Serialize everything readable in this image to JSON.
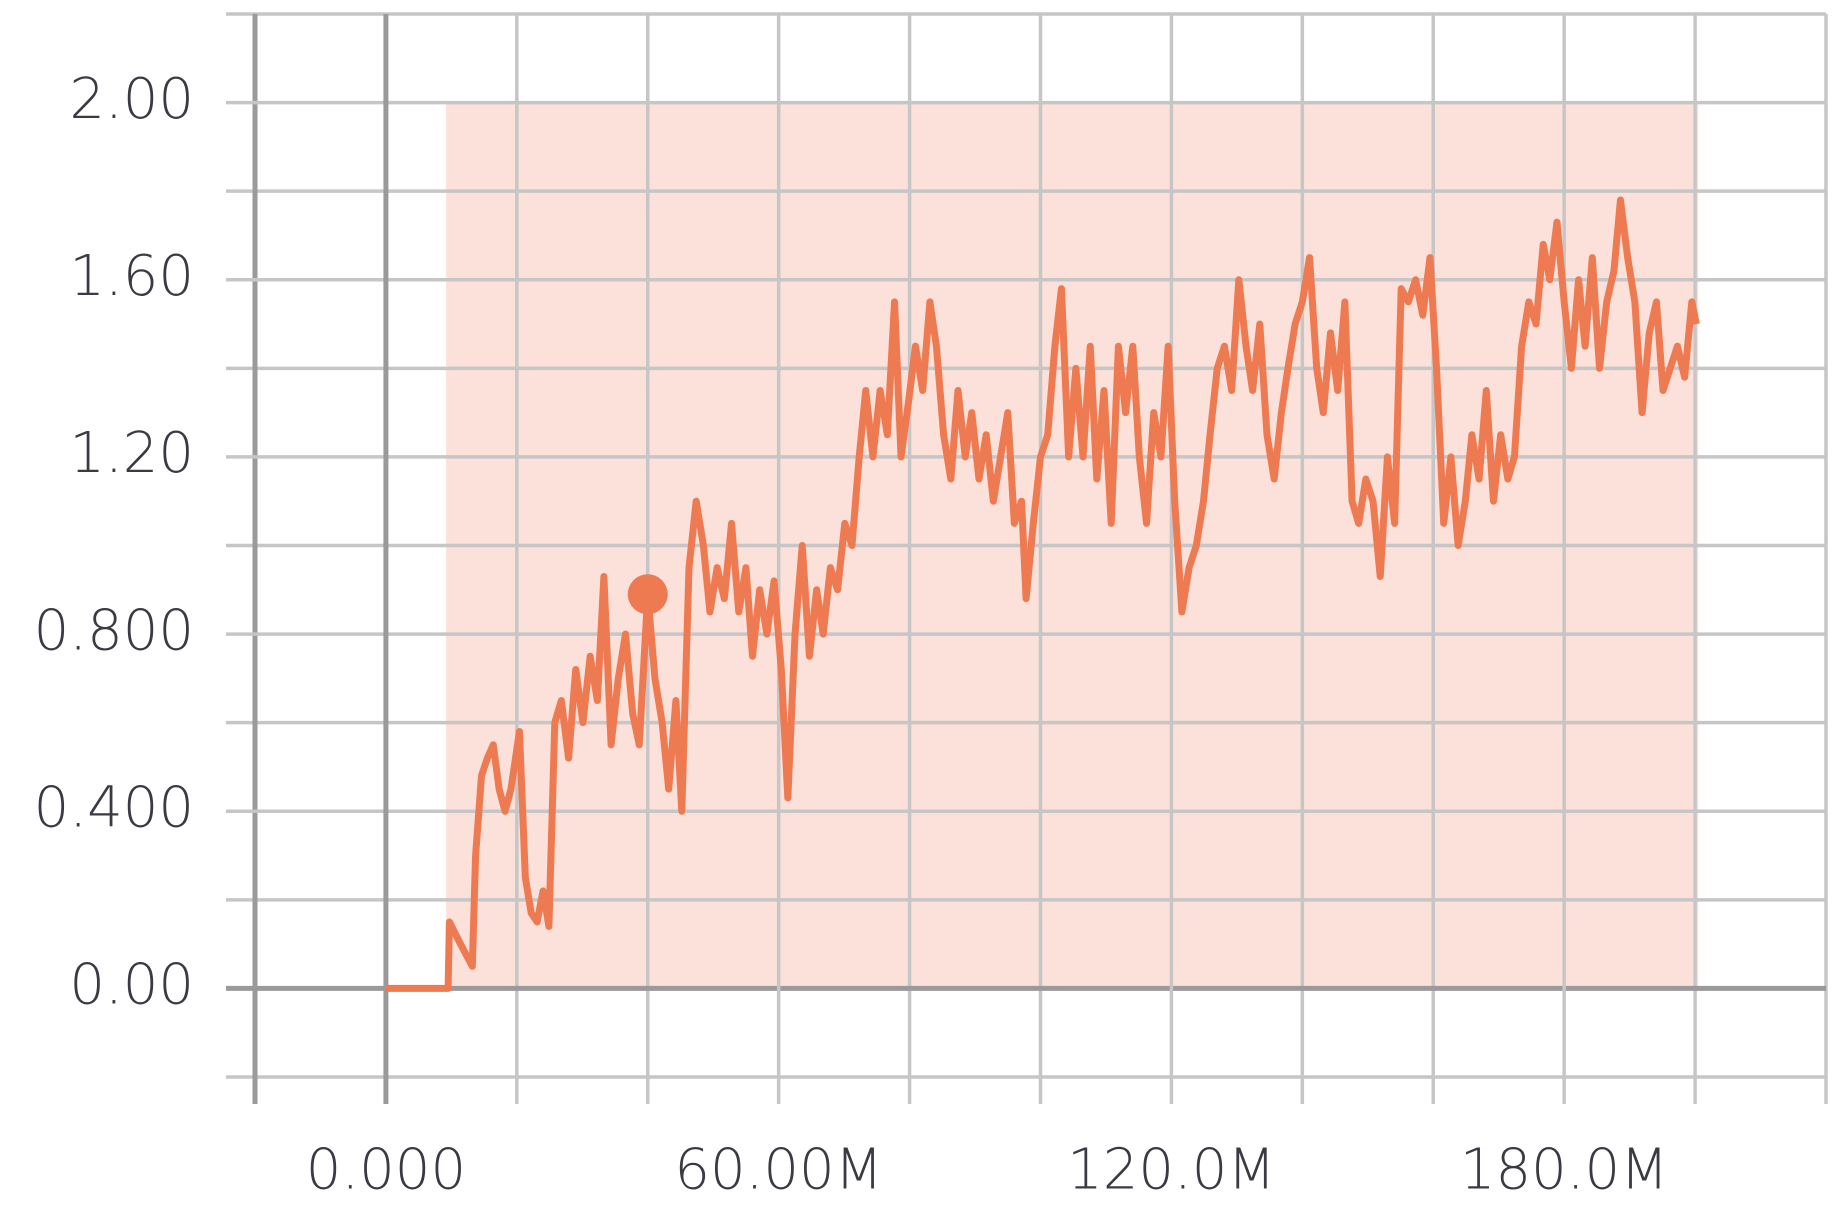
{
  "chart_data": {
    "type": "line",
    "x": [
      0,
      9.5,
      9.7,
      11.4,
      13.2,
      13.7,
      14.6,
      15.5,
      16.4,
      17.3,
      18.2,
      19.1,
      20.4,
      21.3,
      22.2,
      23.1,
      24.0,
      24.9,
      25.8,
      26.8,
      27.9,
      29.0,
      30.1,
      31.2,
      32.3,
      33.3,
      34.4,
      35.5,
      36.6,
      37.7,
      38.7,
      40.0,
      41.1,
      42.2,
      43.2,
      44.3,
      45.2,
      46.3,
      47.4,
      48.5,
      49.5,
      50.6,
      51.7,
      52.8,
      53.9,
      55.0,
      56.0,
      57.1,
      58.2,
      59.3,
      60.4,
      61.4,
      62.5,
      63.6,
      64.7,
      65.8,
      66.8,
      67.9,
      69.0,
      70.1,
      71.2,
      72.3,
      73.3,
      74.4,
      75.5,
      76.6,
      77.7,
      78.7,
      79.8,
      80.9,
      82.0,
      83.1,
      84.1,
      85.2,
      86.3,
      87.4,
      88.5,
      89.5,
      90.6,
      91.7,
      92.8,
      93.9,
      95.0,
      96.0,
      97.1,
      97.8,
      98.9,
      100.0,
      101.1,
      102.2,
      103.2,
      104.3,
      105.4,
      106.5,
      107.6,
      108.6,
      109.7,
      110.8,
      111.9,
      113.0,
      114.1,
      115.1,
      116.2,
      117.3,
      118.4,
      119.5,
      120.5,
      121.6,
      122.7,
      123.8,
      124.9,
      125.9,
      127.0,
      128.1,
      129.2,
      130.3,
      131.4,
      132.4,
      133.5,
      134.6,
      135.7,
      136.8,
      137.8,
      138.9,
      140.0,
      141.1,
      142.2,
      143.2,
      144.3,
      145.4,
      146.5,
      147.6,
      148.6,
      149.7,
      150.8,
      151.9,
      153.0,
      154.1,
      155.1,
      156.2,
      157.3,
      158.4,
      159.5,
      160.5,
      161.6,
      162.7,
      163.8,
      164.9,
      165.9,
      167.0,
      168.1,
      169.2,
      170.3,
      171.4,
      172.4,
      173.5,
      174.6,
      175.7,
      176.8,
      177.8,
      178.9,
      180.0,
      181.1,
      182.2,
      183.2,
      184.3,
      185.4,
      186.5,
      187.6,
      188.6,
      189.7,
      190.8,
      191.9,
      193.0,
      194.1,
      195.1,
      196.2,
      197.3,
      198.4,
      199.5,
      200.2
    ],
    "series": [
      {
        "color": "#ee7a52",
        "values": [
          0,
          0,
          0.15,
          0.1,
          0.05,
          0.3,
          0.48,
          0.52,
          0.55,
          0.45,
          0.4,
          0.45,
          0.58,
          0.25,
          0.17,
          0.15,
          0.22,
          0.14,
          0.6,
          0.65,
          0.52,
          0.72,
          0.6,
          0.75,
          0.65,
          0.93,
          0.55,
          0.7,
          0.8,
          0.62,
          0.55,
          0.89,
          0.7,
          0.6,
          0.45,
          0.65,
          0.4,
          0.95,
          1.1,
          1.0,
          0.85,
          0.95,
          0.88,
          1.05,
          0.85,
          0.95,
          0.75,
          0.9,
          0.8,
          0.92,
          0.72,
          0.43,
          0.8,
          1.0,
          0.75,
          0.9,
          0.8,
          0.95,
          0.9,
          1.05,
          1.0,
          1.2,
          1.35,
          1.2,
          1.35,
          1.25,
          1.55,
          1.2,
          1.32,
          1.45,
          1.35,
          1.55,
          1.45,
          1.25,
          1.15,
          1.35,
          1.2,
          1.3,
          1.15,
          1.25,
          1.1,
          1.2,
          1.3,
          1.05,
          1.1,
          0.88,
          1.05,
          1.2,
          1.25,
          1.45,
          1.58,
          1.2,
          1.4,
          1.2,
          1.45,
          1.15,
          1.35,
          1.05,
          1.45,
          1.3,
          1.45,
          1.2,
          1.05,
          1.3,
          1.2,
          1.45,
          1.1,
          0.85,
          0.95,
          1.0,
          1.1,
          1.25,
          1.4,
          1.45,
          1.35,
          1.6,
          1.45,
          1.35,
          1.5,
          1.25,
          1.15,
          1.3,
          1.4,
          1.5,
          1.55,
          1.65,
          1.4,
          1.3,
          1.48,
          1.35,
          1.55,
          1.1,
          1.05,
          1.15,
          1.1,
          0.93,
          1.2,
          1.05,
          1.58,
          1.55,
          1.6,
          1.52,
          1.65,
          1.4,
          1.05,
          1.2,
          1.0,
          1.1,
          1.25,
          1.15,
          1.35,
          1.1,
          1.25,
          1.15,
          1.2,
          1.45,
          1.55,
          1.5,
          1.68,
          1.6,
          1.73,
          1.55,
          1.4,
          1.6,
          1.45,
          1.65,
          1.4,
          1.55,
          1.62,
          1.78,
          1.65,
          1.55,
          1.3,
          1.48,
          1.55,
          1.35,
          1.4,
          1.45,
          1.38,
          1.55,
          1.5
        ]
      }
    ],
    "band": {
      "x": [
        9.2,
        200.5
      ],
      "lower": [
        0,
        0
      ],
      "upper": [
        2.0,
        2.0
      ],
      "color": "#fbe1d9"
    },
    "highlight": {
      "x": 40.0,
      "y": 0.89
    },
    "xlim": [
      -20,
      220
    ],
    "ylim": [
      -0.2,
      2.2
    ],
    "xticks": [
      {
        "value": 0,
        "label": "0.000"
      },
      {
        "value": 60,
        "label": "60.00M"
      },
      {
        "value": 120,
        "label": "120.0M"
      },
      {
        "value": 180,
        "label": "180.0M"
      }
    ],
    "xminor": [
      -20,
      20,
      40,
      80,
      100,
      140,
      160,
      200,
      220
    ],
    "yticks": [
      {
        "value": 0,
        "label": "0.00"
      },
      {
        "value": 0.4,
        "label": "0.400"
      },
      {
        "value": 0.8,
        "label": "0.800"
      },
      {
        "value": 1.2,
        "label": "1.20"
      },
      {
        "value": 1.6,
        "label": "1.60"
      },
      {
        "value": 2.0,
        "label": "2.00"
      }
    ],
    "yminor": [
      -0.2,
      0.2,
      0.6,
      1.0,
      1.4,
      1.8,
      2.2
    ],
    "grid": true
  }
}
